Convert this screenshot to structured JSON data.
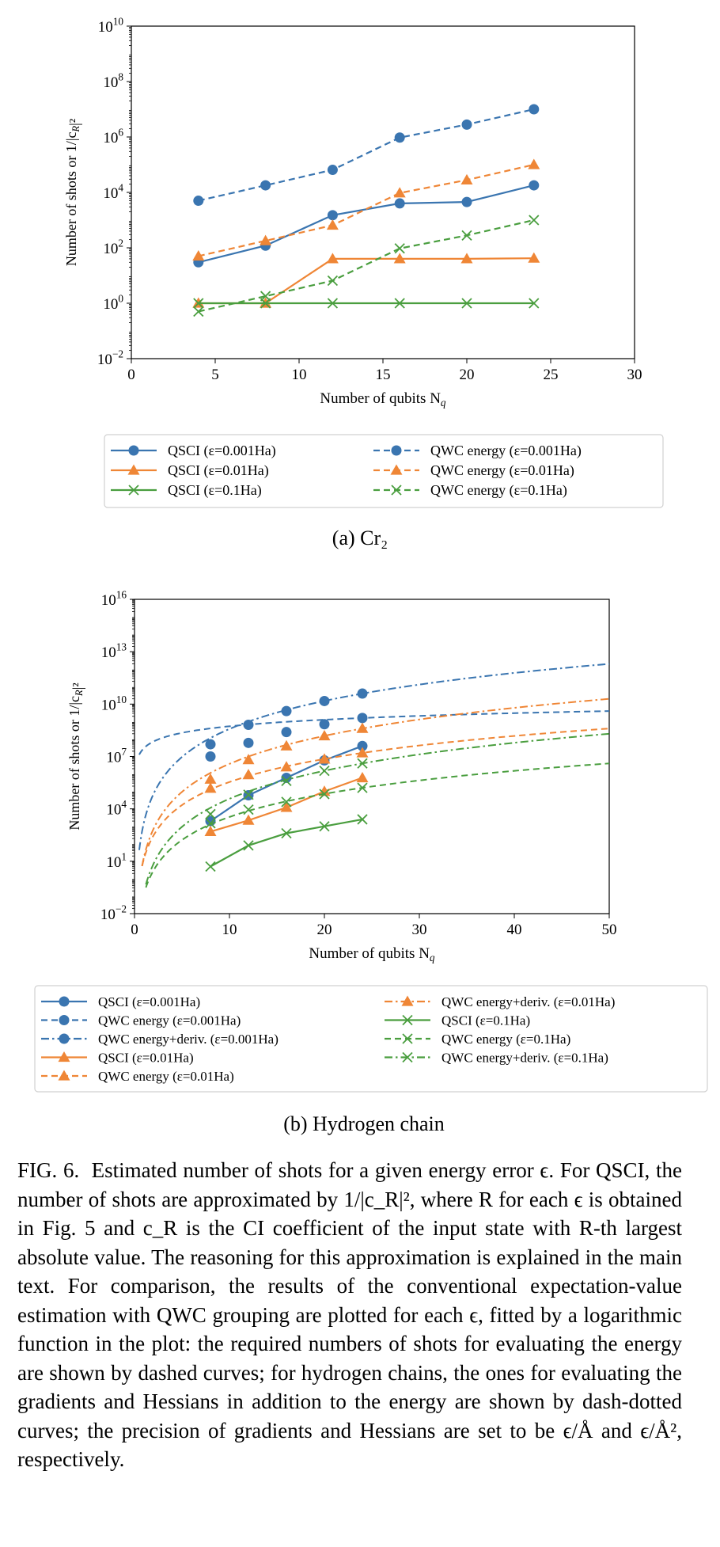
{
  "panel_a_caption": "(a) Cr₂",
  "panel_b_caption": "(b) Hydrogen chain",
  "figure_caption": {
    "label": "FIG. 6.",
    "text": "Estimated number of shots for a given energy error ϵ. For QSCI, the number of shots are approximated by 1/|c_R|², where R for each ϵ is obtained in Fig. 5 and c_R is the CI coefficient of the input state with R-th largest absolute value. The reasoning for this approximation is explained in the main text. For comparison, the results of the conventional expectation-value estimation with QWC grouping are plotted for each ϵ, fitted by a logarithmic function in the plot: the required numbers of shots for evaluating the energy are shown by dashed curves; for hydrogen chains, the ones for evaluating the gradients and Hessians in addition to the energy are shown by dash-dotted curves; the precision of gradients and Hessians are set to be ϵ/Å and ϵ/Å², respectively."
  },
  "colors": {
    "blue": "#3a75b0",
    "orange": "#ef8636",
    "green": "#4a9e3f"
  },
  "chart_data": [
    {
      "type": "line",
      "title": "",
      "xlabel": "Number of qubits N_q",
      "ylabel": "Number of shots or 1/|c_R|²",
      "xlim": [
        0,
        30
      ],
      "ylim_log10": [
        -2,
        10
      ],
      "y_scale": "log",
      "xticks": [
        "0",
        "5",
        "10",
        "15",
        "20",
        "25",
        "30"
      ],
      "yticks": [
        "10^-2",
        "10^0",
        "10^2",
        "10^4",
        "10^6",
        "10^8",
        "10^10"
      ],
      "legend_placement": "below",
      "legend_columns": 2,
      "series": [
        {
          "name": "QSCI (ε=0.001Ha)",
          "color": "blue",
          "style": "solid",
          "marker": "circle",
          "x": [
            4,
            8,
            12,
            16,
            20,
            24
          ],
          "y": [
            30,
            120,
            1500,
            4000,
            4500,
            18000
          ]
        },
        {
          "name": "QSCI (ε=0.01Ha)",
          "color": "orange",
          "style": "solid",
          "marker": "triangle",
          "x": [
            4,
            8,
            12,
            16,
            20,
            24
          ],
          "y": [
            1,
            1,
            40,
            40,
            40,
            42
          ]
        },
        {
          "name": "QSCI (ε=0.1Ha)",
          "color": "green",
          "style": "solid",
          "marker": "x",
          "x": [
            4,
            8,
            12,
            16,
            20,
            24
          ],
          "y": [
            1,
            1,
            1,
            1,
            1,
            1
          ]
        },
        {
          "name": "QWC energy (ε=0.001Ha)",
          "color": "blue",
          "style": "dashed",
          "marker": "circle",
          "x": [
            4,
            8,
            12,
            16,
            20,
            24
          ],
          "y": [
            5000,
            18000,
            65000,
            950000,
            2800000,
            10000000
          ]
        },
        {
          "name": "QWC energy (ε=0.01Ha)",
          "color": "orange",
          "style": "dashed",
          "marker": "triangle",
          "x": [
            4,
            8,
            12,
            16,
            20,
            24
          ],
          "y": [
            50,
            180,
            650,
            9500,
            28000,
            100000
          ]
        },
        {
          "name": "QWC energy (ε=0.1Ha)",
          "color": "green",
          "style": "dashed",
          "marker": "x",
          "x": [
            4,
            8,
            12,
            16,
            20,
            24
          ],
          "y": [
            0.5,
            1.8,
            6.5,
            95,
            280,
            1000
          ]
        }
      ]
    },
    {
      "type": "line",
      "title": "",
      "xlabel": "Number of qubits N_q",
      "ylabel": "Number of shots or 1/|c_R|²",
      "xlim": [
        0,
        50
      ],
      "ylim_log10": [
        -2,
        16
      ],
      "y_scale": "log",
      "xticks": [
        "0",
        "10",
        "20",
        "30",
        "40",
        "50"
      ],
      "yticks": [
        "10^-2",
        "10^1",
        "10^4",
        "10^7",
        "10^10",
        "10^13",
        "10^16"
      ],
      "legend_placement": "below",
      "legend_columns": 2,
      "series": [
        {
          "name": "QSCI (ε=0.001Ha)",
          "color": "blue",
          "style": "solid",
          "marker": "circle",
          "x": [
            8,
            12,
            16,
            20,
            24
          ],
          "y": [
            2000,
            60000,
            600000,
            6000000,
            40000000
          ]
        },
        {
          "name": "QWC energy (ε=0.001Ha)",
          "color": "blue",
          "style": "dashed",
          "marker": "circle",
          "x": [
            8,
            12,
            16,
            20,
            24
          ],
          "y": [
            10000000,
            60000000,
            250000000,
            700000000,
            1600000000
          ],
          "fit": {
            "type": "log",
            "x_range": [
              0.5,
              50
            ],
            "y_end": 4000000000
          }
        },
        {
          "name": "QWC energy+deriv. (ε=0.001Ha)",
          "color": "blue",
          "style": "dashdot",
          "marker": "circle",
          "x": [
            8,
            12,
            16,
            20,
            24
          ],
          "y": [
            50000000,
            650000000,
            4000000000,
            15000000000,
            40000000000
          ],
          "fit": {
            "type": "log",
            "x_range": [
              0.5,
              50
            ],
            "y_end": 2000000000000
          }
        },
        {
          "name": "QSCI (ε=0.01Ha)",
          "color": "orange",
          "style": "solid",
          "marker": "triangle",
          "x": [
            8,
            12,
            16,
            20,
            24
          ],
          "y": [
            500,
            2200,
            12000,
            100000,
            600000
          ]
        },
        {
          "name": "QWC energy (ε=0.01Ha)",
          "color": "orange",
          "style": "dashed",
          "marker": "triangle",
          "x": [
            8,
            12,
            16,
            20,
            24
          ],
          "y": [
            150000,
            900000,
            2500000,
            7000000,
            16000000
          ],
          "fit": {
            "type": "log",
            "x_range": [
              0.8,
              50
            ],
            "y_end": 400000000
          }
        },
        {
          "name": "QWC energy+deriv. (ε=0.01Ha)",
          "color": "orange",
          "style": "dashdot",
          "marker": "triangle",
          "x": [
            8,
            12,
            16,
            20,
            24
          ],
          "y": [
            500000,
            6500000,
            40000000,
            150000000,
            400000000
          ],
          "fit": {
            "type": "log",
            "x_range": [
              0.8,
              50
            ],
            "y_end": 20000000000
          }
        },
        {
          "name": "QSCI (ε=0.1Ha)",
          "color": "green",
          "style": "solid",
          "marker": "x",
          "x": [
            8,
            12,
            16,
            20,
            24
          ],
          "y": [
            5,
            80,
            400,
            1000,
            2500
          ]
        },
        {
          "name": "QWC energy (ε=0.1Ha)",
          "color": "green",
          "style": "dashed",
          "marker": "x",
          "x": [
            8,
            12,
            16,
            20,
            24
          ],
          "y": [
            1500,
            9000,
            25000,
            70000,
            160000
          ],
          "fit": {
            "type": "log",
            "x_range": [
              1.2,
              50
            ],
            "y_end": 4000000
          }
        },
        {
          "name": "QWC energy+deriv. (ε=0.1Ha)",
          "color": "green",
          "style": "dashdot",
          "marker": "x",
          "x": [
            8,
            12,
            16,
            20,
            24
          ],
          "y": [
            5000,
            65000,
            400000,
            1500000,
            4000000
          ],
          "fit": {
            "type": "log",
            "x_range": [
              1.2,
              50
            ],
            "y_end": 200000000
          }
        }
      ]
    }
  ]
}
